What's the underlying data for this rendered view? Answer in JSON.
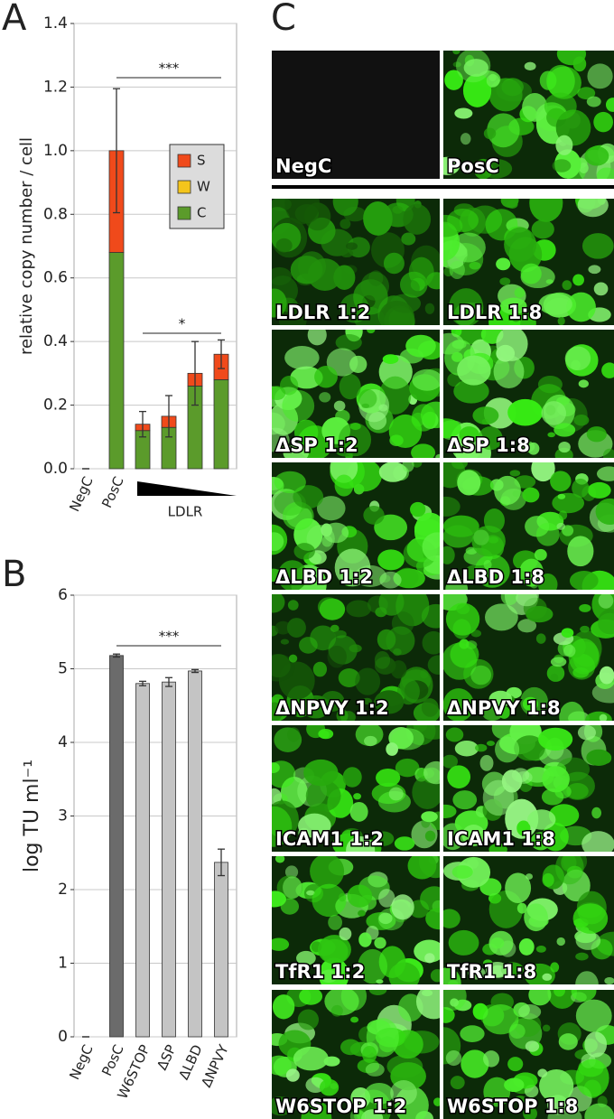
{
  "chart_data": [
    {
      "panel": "A",
      "type": "stacked_bar",
      "y_label": "relative copy number / cell",
      "categories": [
        "NegC",
        "PosC",
        null,
        null,
        null,
        null
      ],
      "group_label": "LDLR",
      "series": [
        {
          "name": "C",
          "color": "#5b9b2b",
          "values": [
            0,
            0.68,
            0.12,
            0.13,
            0.26,
            0.28
          ]
        },
        {
          "name": "W",
          "color": "#f4c51c",
          "values": [
            0,
            0,
            0,
            0,
            0,
            0
          ]
        },
        {
          "name": "S",
          "color": "#f04a1b",
          "values": [
            0,
            0.32,
            0.02,
            0.035,
            0.04,
            0.08
          ]
        }
      ],
      "errors": [
        0,
        0.195,
        0.04,
        0.065,
        0.1,
        0.045
      ],
      "ylim": [
        0,
        1.4
      ],
      "yticks": [
        {
          "value": 0,
          "label": "0.0"
        },
        {
          "value": 0.2,
          "label": "0.2"
        },
        {
          "value": 0.4,
          "label": "0.4"
        },
        {
          "value": 0.6,
          "label": "0.6"
        },
        {
          "value": 0.8,
          "label": "0.8"
        },
        {
          "value": 1,
          "label": "1.0"
        },
        {
          "value": 1.2,
          "label": "1.2"
        },
        {
          "value": 1.4,
          "label": "1.4"
        }
      ],
      "grid": true,
      "legend": "upper right",
      "annotations": [
        "***",
        "*"
      ]
    },
    {
      "panel": "B",
      "type": "bar",
      "y_label": "log TU ml⁻¹",
      "categories": [
        "NegC",
        "PosC",
        "W6STOP",
        "ΔSP",
        "ΔLBD",
        "ΔNPVY"
      ],
      "values": [
        0,
        5.18,
        4.8,
        4.82,
        4.97,
        2.37
      ],
      "errors": [
        0,
        0.02,
        0.03,
        0.06,
        0.02,
        0.18
      ],
      "colors": [
        "#bdbdbd",
        "#6b6b6b",
        "#c4c4c4",
        "#c4c4c4",
        "#c4c4c4",
        "#c4c4c4"
      ],
      "ylim": [
        0,
        6
      ],
      "yticks": [
        0,
        1,
        2,
        3,
        4,
        5,
        6
      ],
      "grid": true,
      "annotations": [
        "***"
      ]
    }
  ],
  "micrographs": {
    "panel": "C",
    "labels": [
      "NegC",
      "PosC",
      "LDLR 1:2",
      "LDLR 1:8",
      "ΔSP 1:2",
      "ΔSP 1:8",
      "ΔLBD 1:2",
      "ΔLBD 1:8",
      "ΔNPVY 1:2",
      "ΔNPVY 1:8",
      "ICAM1 1:2",
      "ICAM1 1:8",
      "TfR1 1:2",
      "TfR1 1:8",
      "W6STOP 1:2",
      "W6STOP 1:8"
    ]
  }
}
